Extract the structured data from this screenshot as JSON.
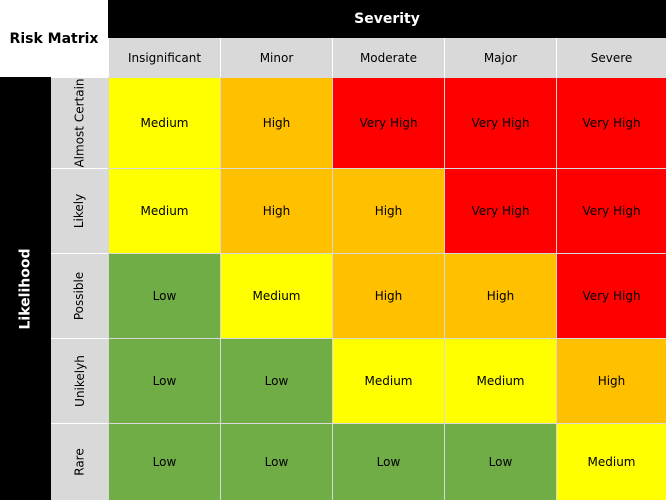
{
  "title": "Risk Matrix",
  "severity_label": "Severity",
  "likelihood_label": "Likelihood",
  "severity_levels": [
    "Insignificant",
    "Minor",
    "Moderate",
    "Major",
    "Severe"
  ],
  "likelihood_levels": [
    "Almost Certain",
    "Likely",
    "Possible",
    "Unikelyh",
    "Rare"
  ],
  "cells": [
    [
      "Medium",
      "High",
      "Very High",
      "Very High",
      "Very High"
    ],
    [
      "Medium",
      "High",
      "High",
      "Very High",
      "Very High"
    ],
    [
      "Low",
      "Medium",
      "High",
      "High",
      "Very High"
    ],
    [
      "Low",
      "Low",
      "Medium",
      "Medium",
      "High"
    ],
    [
      "Low",
      "Low",
      "Low",
      "Low",
      "Medium"
    ]
  ],
  "colors": {
    "Low": "#70ad47",
    "Medium": "#ffff00",
    "High": "#ffc000",
    "Very High": "#ff0000",
    "header_bg": "#000000",
    "label_bg": "#d9d9d9"
  }
}
